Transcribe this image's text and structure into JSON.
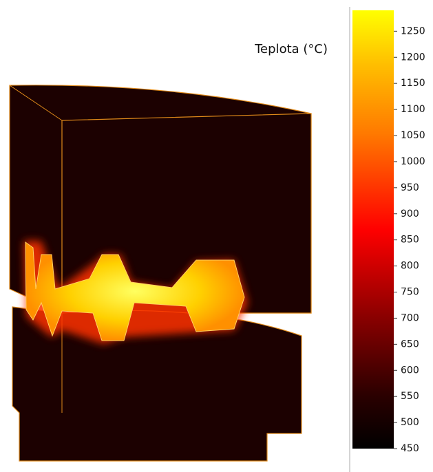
{
  "chart_data": {
    "type": "colorbar",
    "title": "Teplota (°C)",
    "ylim": [
      450,
      1290
    ],
    "yticks": [
      450,
      500,
      550,
      600,
      650,
      700,
      750,
      800,
      850,
      900,
      950,
      1000,
      1050,
      1100,
      1150,
      1200,
      1250
    ]
  }
}
